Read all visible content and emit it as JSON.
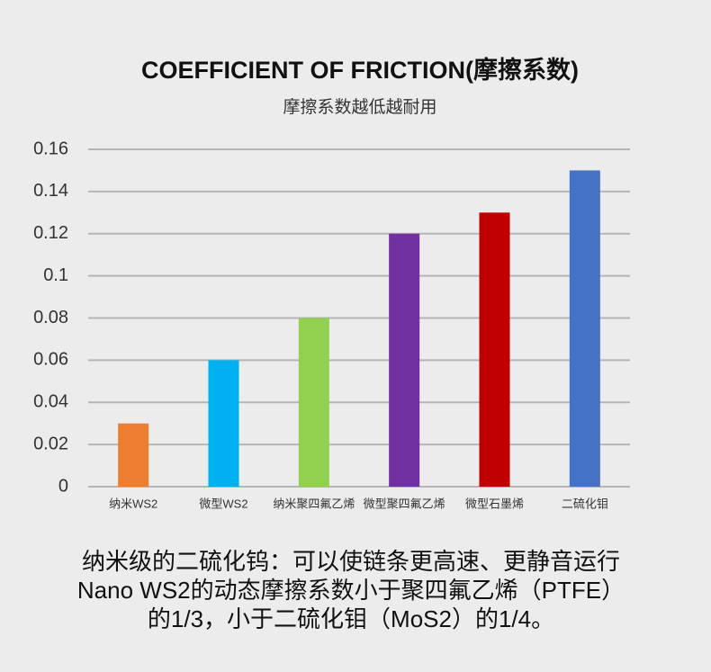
{
  "chart_data": {
    "type": "bar",
    "title": "COEFFICIENT OF FRICTION(摩擦系数)",
    "subtitle": "摩擦系数越低越耐用",
    "categories": [
      "纳米WS2",
      "微型WS2",
      "纳米聚四氟乙烯",
      "微型聚四氟乙烯",
      "微型石墨烯",
      "二硫化钼"
    ],
    "values": [
      0.03,
      0.06,
      0.08,
      0.12,
      0.13,
      0.15
    ],
    "colors": [
      "#ed7d31",
      "#00b0f0",
      "#92d050",
      "#7030a0",
      "#c00000",
      "#4472c4"
    ],
    "ylim": [
      0,
      0.16
    ],
    "yticks": [
      0,
      0.02,
      0.04,
      0.06,
      0.08,
      0.1,
      0.12,
      0.14,
      0.16
    ],
    "grid": true,
    "annotations": [
      "纳米级的二硫化钨：可以使链条更高速、更静音运行",
      "Nano WS2的动态摩擦系数小于聚四氟乙烯（PTFE）",
      "的1/3，小于二硫化钼（MoS2）的1/4。"
    ]
  }
}
